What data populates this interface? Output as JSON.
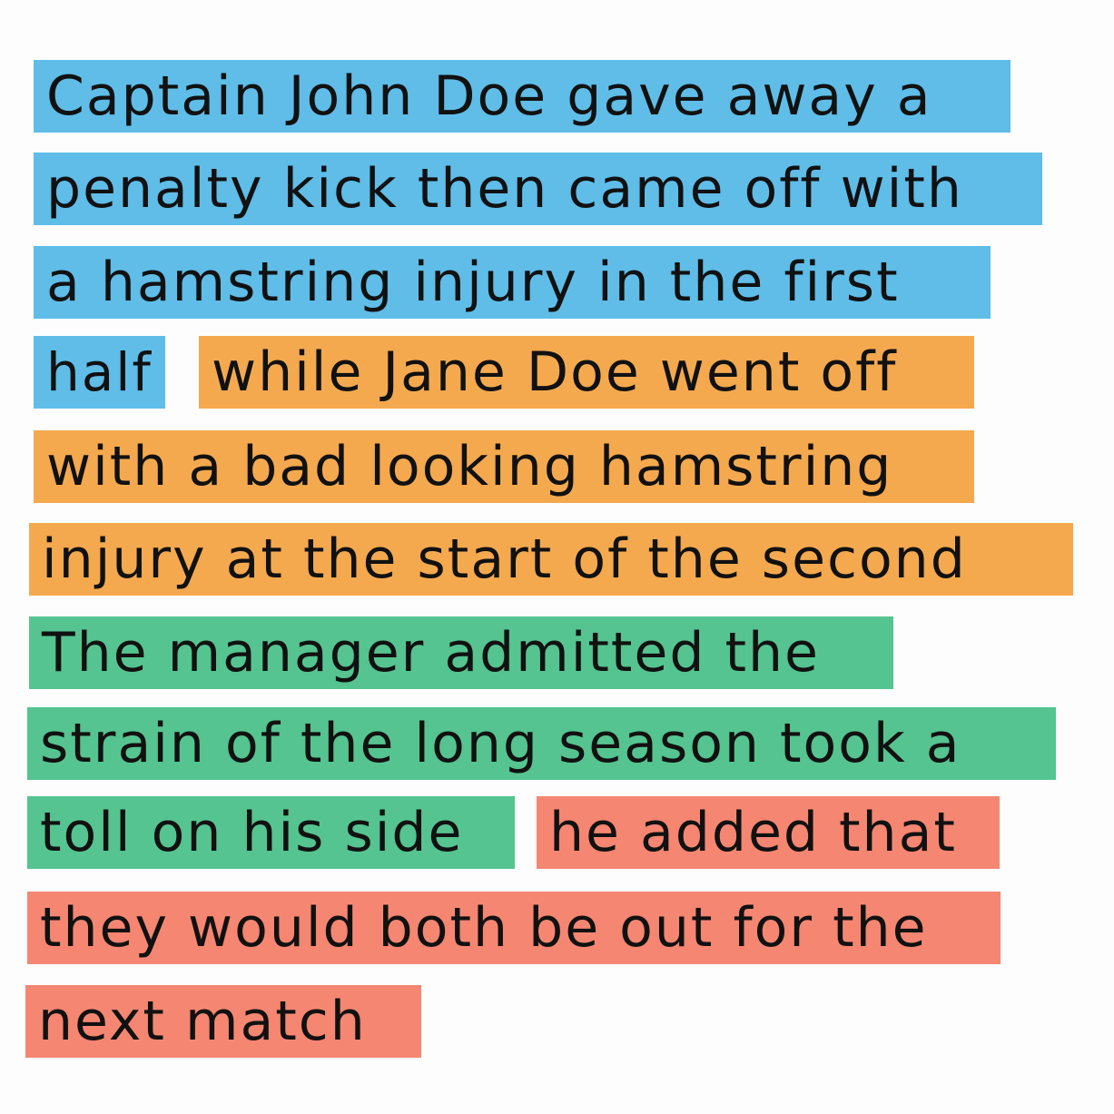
{
  "colors": {
    "background": "#fdfdfd",
    "segment_1": "#5fbde8",
    "segment_2": "#f4a94f",
    "segment_3": "#55c490",
    "segment_4": "#f58672",
    "text": "#111111"
  },
  "segments": [
    {
      "color": "#5fbde8",
      "lines": [
        "Captain John Doe gave away a",
        "penalty kick then came off with",
        "a hamstring injury in the first",
        "half"
      ]
    },
    {
      "color": "#f4a94f",
      "lines": [
        "while Jane Doe went off",
        "with a bad looking hamstring",
        "injury at the start of the second"
      ]
    },
    {
      "color": "#55c490",
      "lines": [
        "The manager admitted the",
        "strain of the long season took a",
        "toll on his side"
      ]
    },
    {
      "color": "#f58672",
      "lines": [
        "he added that",
        "they would both be out for the",
        "next match"
      ]
    }
  ]
}
